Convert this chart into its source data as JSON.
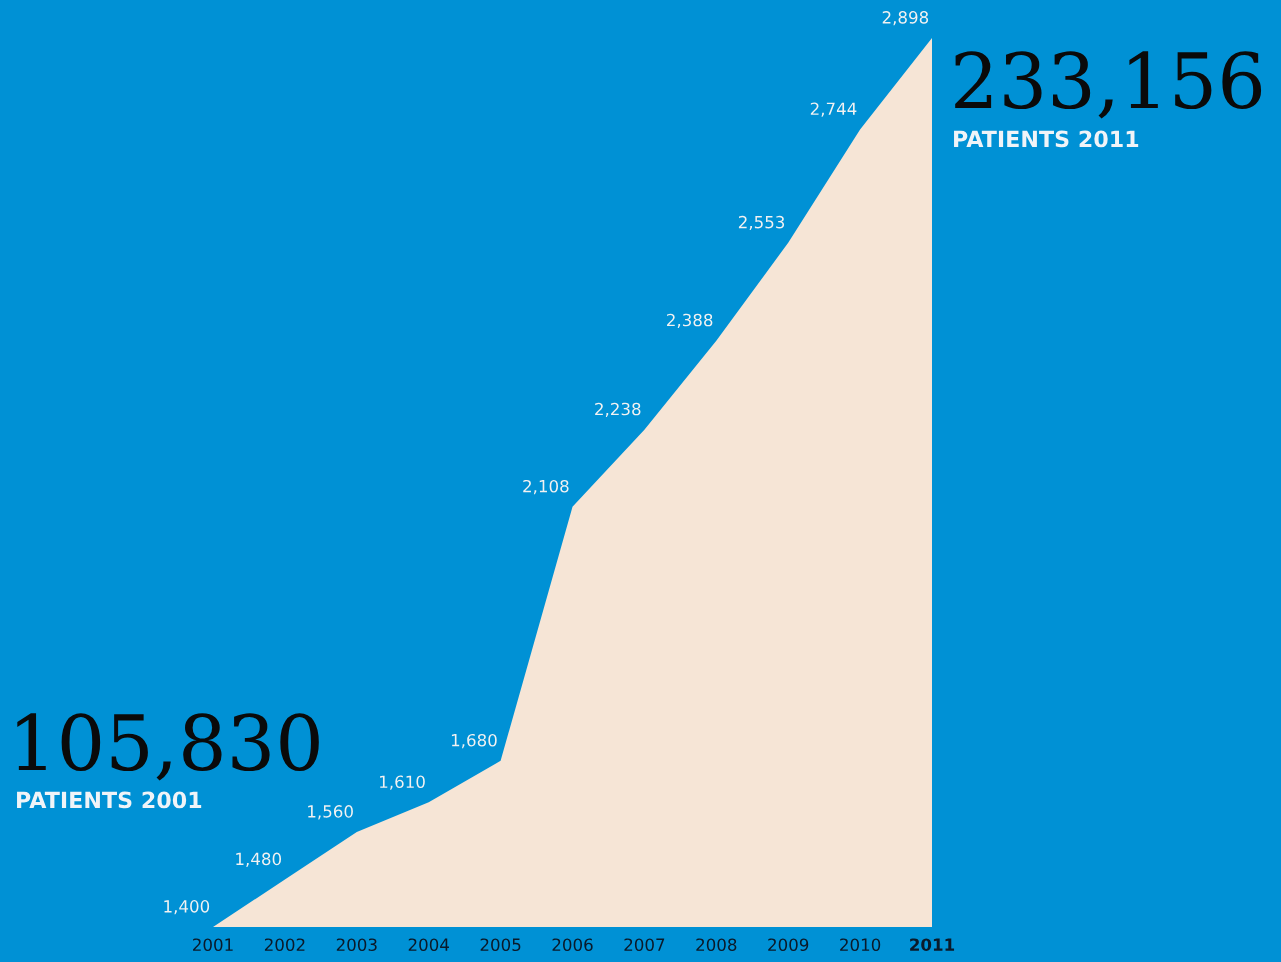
{
  "chart_data": {
    "type": "area",
    "categories": [
      "2001",
      "2002",
      "2003",
      "2004",
      "2005",
      "2006",
      "2007",
      "2008",
      "2009",
      "2010",
      "2011"
    ],
    "values": [
      1400,
      1480,
      1560,
      1610,
      1680,
      2108,
      2238,
      2388,
      2553,
      2744,
      2898
    ],
    "color": "#f6e5d6",
    "value_labels": [
      "1,400",
      "1,480",
      "1,560",
      "1,610",
      "1,680",
      "2,108",
      "2,238",
      "2,388",
      "2,553",
      "2,744",
      "2,898"
    ],
    "tick_labels": "x",
    "grid": false,
    "annotations": [
      "105,830",
      "PATIENTS 2001",
      "233,156",
      "PATIENTS 2011"
    ]
  }
}
